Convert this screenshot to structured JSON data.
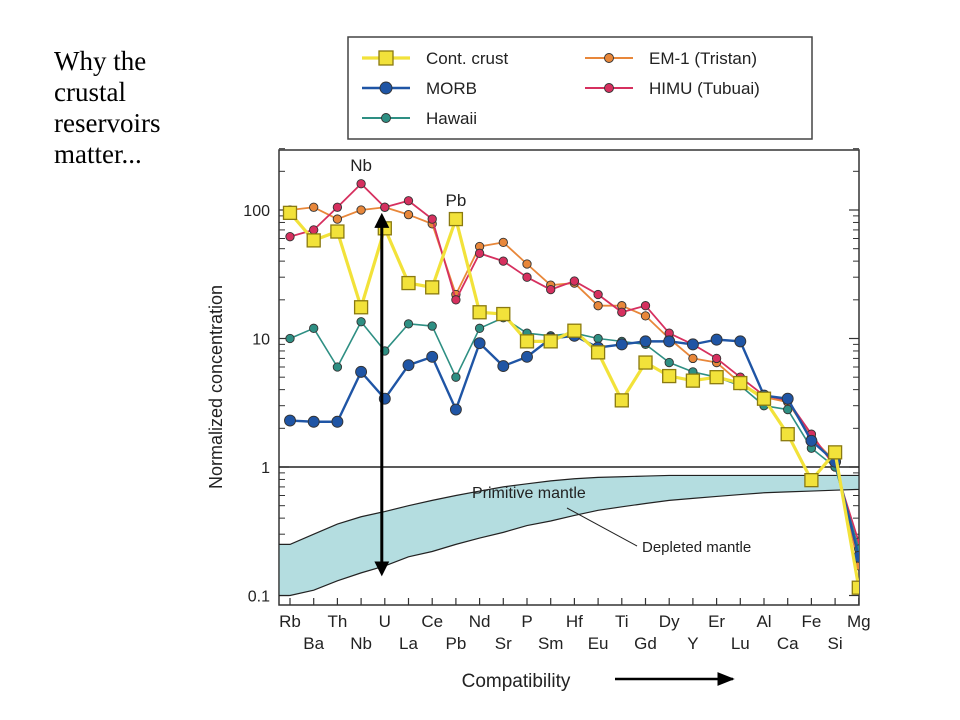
{
  "slide": {
    "title_lines": [
      "Why the",
      "crustal",
      "reservoirs",
      "matter..."
    ]
  },
  "chart_data": {
    "type": "line",
    "ylabel": "Normalized concentration",
    "xlabel": "Compatibility",
    "yscale": "log",
    "ylim": [
      0.1,
      300
    ],
    "y_ticks": [
      {
        "value": 100,
        "label": "100"
      },
      {
        "value": 10,
        "label": "10"
      },
      {
        "value": 1,
        "label": "1"
      },
      {
        "value": 0.1,
        "label": "0.1"
      }
    ],
    "categories": [
      "Rb",
      "Ba",
      "Th",
      "Nb",
      "U",
      "La",
      "Ce",
      "Pb",
      "Nd",
      "Sr",
      "P",
      "Sm",
      "Hf",
      "Eu",
      "Ti",
      "Gd",
      "Dy",
      "Y",
      "Er",
      "Lu",
      "Al",
      "Ca",
      "Fe",
      "Si",
      "Mg"
    ],
    "legend": {
      "left": [
        "Cont. crust",
        "MORB",
        "Hawaii"
      ],
      "right": [
        "EM-1 (Tristan)",
        "HIMU (Tubuai)"
      ]
    },
    "series": [
      {
        "name": "EM-1 (Tristan)",
        "color": "#e8873a",
        "marker": "circle",
        "width": 1.8,
        "values": [
          100,
          105,
          85,
          100,
          105,
          92,
          78,
          22,
          52,
          56,
          38,
          26,
          27,
          18,
          18,
          15,
          10,
          7,
          6.5,
          4.5,
          3.5,
          3.2,
          1.7,
          1.1,
          0.17
        ]
      },
      {
        "name": "HIMU (Tubuai)",
        "color": "#d6305f",
        "marker": "circle",
        "width": 1.8,
        "values": [
          62,
          70,
          105,
          160,
          105,
          118,
          85,
          20,
          46,
          40,
          30,
          24,
          28,
          22,
          16,
          18,
          11,
          9,
          7,
          5,
          3.6,
          3.3,
          1.8,
          1,
          0.26
        ]
      },
      {
        "name": "Hawaii",
        "color": "#2e8f83",
        "marker": "circle",
        "width": 1.6,
        "values": [
          10,
          12,
          6,
          13.5,
          8,
          13,
          12.5,
          5,
          12,
          14.5,
          11,
          10.5,
          11,
          10,
          9.5,
          9,
          6.5,
          5.5,
          5,
          4.3,
          3,
          2.8,
          1.4,
          1,
          0.23
        ]
      },
      {
        "name": "MORB",
        "color": "#1f55a5",
        "marker": "circle",
        "width": 2.4,
        "values": [
          2.3,
          2.25,
          2.25,
          5.5,
          3.4,
          6.2,
          7.2,
          2.8,
          9.2,
          6.1,
          7.2,
          10,
          10.5,
          8.5,
          9,
          9.5,
          9.5,
          9,
          9.8,
          9.5,
          3.6,
          3.4,
          1.6,
          1.1,
          0.2
        ]
      },
      {
        "name": "Cont. crust",
        "color": "#f2e23a",
        "stroke": "#8a7a10",
        "marker": "square",
        "width": 3.2,
        "values": [
          95,
          58,
          68,
          17.5,
          72,
          27,
          25,
          85,
          16,
          15.5,
          9.5,
          9.5,
          11.5,
          7.8,
          3.3,
          6.5,
          5.1,
          4.7,
          5,
          4.5,
          3.4,
          1.8,
          0.79,
          1.3,
          0.115
        ]
      }
    ],
    "primitive_mantle": {
      "value": 1,
      "label": "Primitive mantle"
    },
    "depleted_mantle": {
      "label": "Depleted mantle",
      "upper": [
        0.25,
        0.3,
        0.36,
        0.41,
        0.45,
        0.5,
        0.55,
        0.6,
        0.65,
        0.7,
        0.74,
        0.78,
        0.81,
        0.83,
        0.84,
        0.85,
        0.86,
        0.86,
        0.86,
        0.86,
        0.86,
        0.86,
        0.86,
        0.86,
        0.86
      ],
      "lower": [
        0.1,
        0.11,
        0.13,
        0.15,
        0.17,
        0.2,
        0.22,
        0.25,
        0.28,
        0.31,
        0.35,
        0.38,
        0.42,
        0.46,
        0.49,
        0.52,
        0.55,
        0.57,
        0.59,
        0.61,
        0.63,
        0.64,
        0.65,
        0.66,
        0.67
      ],
      "fill": "#b4dde0"
    },
    "annotations": [
      {
        "text": "Nb",
        "category": "Nb",
        "value": 160
      },
      {
        "text": "Pb",
        "category": "Pb",
        "value": 85
      }
    ],
    "arrow": {
      "category": "U",
      "from": 72,
      "to": 0.2
    }
  }
}
